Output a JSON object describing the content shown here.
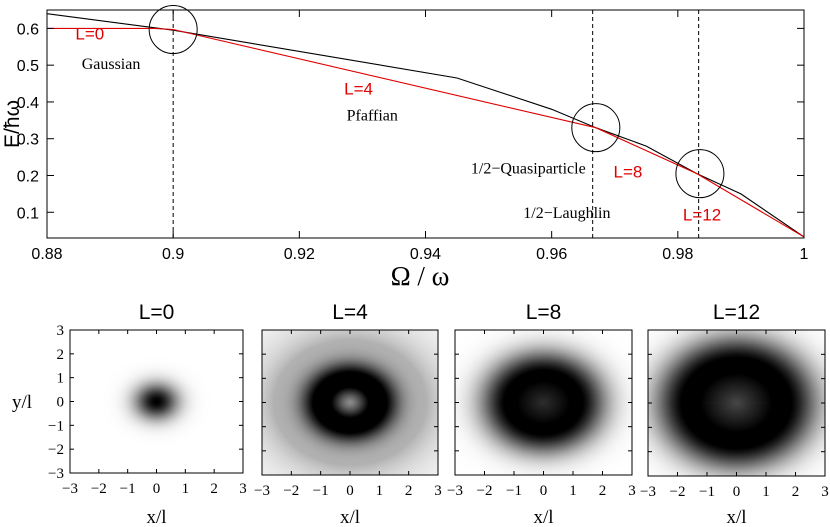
{
  "chart_data": [
    {
      "type": "line",
      "xlabel": "Ω / ω",
      "ylabel": "E/ħω",
      "xlim": [
        0.88,
        1.0
      ],
      "ylim": [
        0.03,
        0.65
      ],
      "xticks": [
        "0.88",
        "0.9",
        "0.92",
        "0.94",
        "0.96",
        "0.98",
        "1"
      ],
      "yticks": [
        "0.1",
        "0.2",
        "0.3",
        "0.4",
        "0.5",
        "0.6"
      ],
      "grid": false,
      "series": [
        {
          "color": "#000000",
          "x": [
            0.88,
            0.9,
            0.945,
            0.96,
            0.967,
            0.975,
            0.983,
            0.99,
            1.0
          ],
          "y": [
            0.64,
            0.595,
            0.465,
            0.38,
            0.33,
            0.28,
            0.205,
            0.15,
            0.033
          ]
        },
        {
          "color": "#e00000",
          "x": [
            0.88,
            0.897,
            0.9,
            0.967,
            0.983,
            1.0
          ],
          "y": [
            0.6,
            0.6,
            0.597,
            0.33,
            0.205,
            0.033
          ]
        }
      ],
      "dashed_lines_x": [
        0.9,
        0.9665,
        0.9833
      ],
      "circles": [
        {
          "x": 0.9,
          "y": 0.597
        },
        {
          "x": 0.967,
          "y": 0.33
        },
        {
          "x": 0.9835,
          "y": 0.205
        }
      ],
      "annotations": [
        {
          "id": "L0",
          "text": "L=0",
          "x": 0.8845,
          "y": 0.57,
          "color": "#e00000",
          "font": "sans"
        },
        {
          "id": "gaussian",
          "text": "Gaussian",
          "x": 0.8855,
          "y": 0.49,
          "color": "#000000",
          "font": "serif"
        },
        {
          "id": "L4",
          "text": "L=4",
          "x": 0.9271,
          "y": 0.42,
          "color": "#e00000",
          "font": "sans"
        },
        {
          "id": "pfaffian",
          "text": "Pfaffian",
          "x": 0.9275,
          "y": 0.35,
          "color": "#000000",
          "font": "serif"
        },
        {
          "id": "quasi",
          "text": "1/2−Quasiparticle",
          "x": 0.9472,
          "y": 0.205,
          "color": "#000000",
          "font": "serif"
        },
        {
          "id": "L8",
          "text": "L=8",
          "x": 0.9698,
          "y": 0.195,
          "color": "#e00000",
          "font": "sans"
        },
        {
          "id": "laughlin",
          "text": "1/2−Laughlin",
          "x": 0.9555,
          "y": 0.085,
          "color": "#000000",
          "font": "serif"
        },
        {
          "id": "L12",
          "text": "L=12",
          "x": 0.9808,
          "y": 0.078,
          "color": "#e00000",
          "font": "sans"
        }
      ]
    },
    {
      "type": "heatmap",
      "panels": [
        {
          "title": "L=0",
          "L": 0
        },
        {
          "title": "L=4",
          "L": 4
        },
        {
          "title": "L=8",
          "L": 8
        },
        {
          "title": "L=12",
          "L": 12
        }
      ],
      "xlabel": "x/l",
      "ylabel": "y/l",
      "xlim": [
        -3,
        3
      ],
      "ylim": [
        -3,
        3
      ],
      "xticks": [
        "−3",
        "−2",
        "−1",
        "0",
        "1",
        "2",
        "3"
      ],
      "yticks": [
        "3",
        "2",
        "1",
        "0",
        "−1",
        "−2",
        "−3"
      ],
      "colormap": "grayscale (darker = higher density)"
    }
  ]
}
